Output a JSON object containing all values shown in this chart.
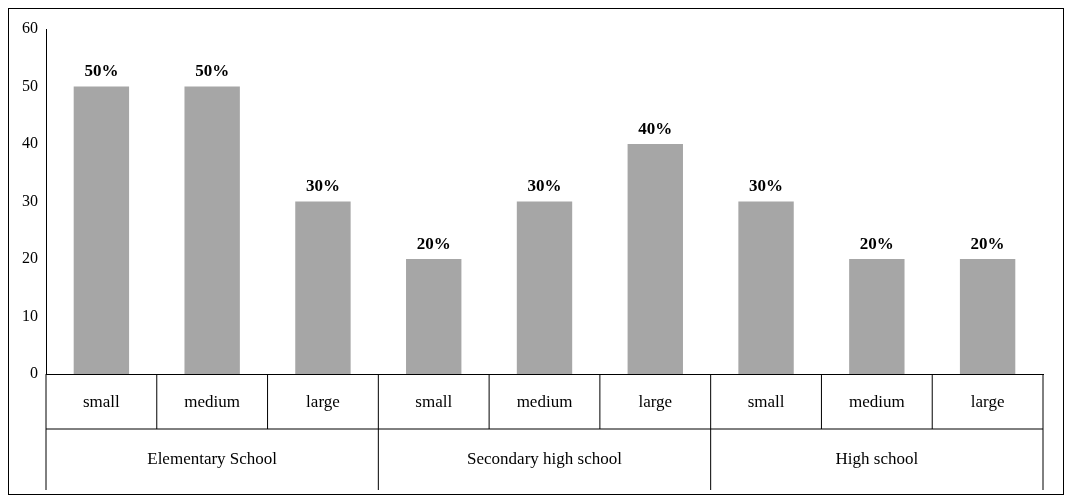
{
  "chart_data": {
    "type": "bar",
    "categories": [
      "small",
      "medium",
      "large",
      "small",
      "medium",
      "large",
      "small",
      "medium",
      "large"
    ],
    "values": [
      50,
      50,
      30,
      20,
      30,
      40,
      30,
      20,
      20
    ],
    "value_labels": [
      "50%",
      "50%",
      "30%",
      "20%",
      "30%",
      "40%",
      "30%",
      "20%",
      "20%"
    ],
    "color": "#a6a6a6",
    "ylim": [
      0,
      60
    ],
    "yticks": [
      0,
      10,
      20,
      30,
      40,
      50,
      60
    ],
    "grid": false,
    "legend": false,
    "annotations": [
      "Elementary School",
      "Secondary high school",
      "High school"
    ]
  }
}
